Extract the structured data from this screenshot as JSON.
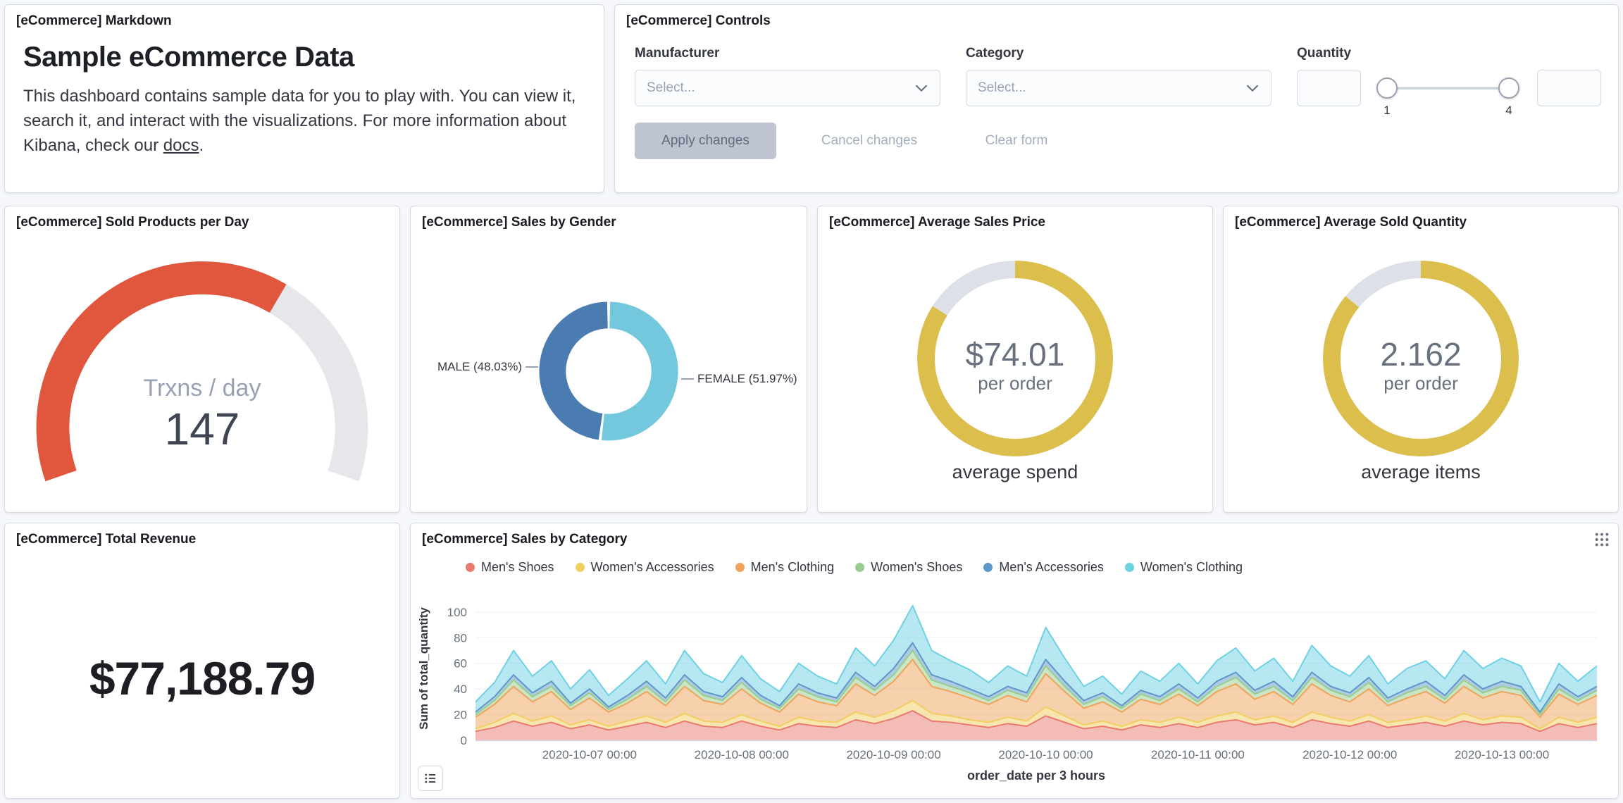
{
  "page": {
    "background": "#F5F7FA",
    "panel_border": "#D3DAE6"
  },
  "panels": {
    "markdown": {
      "title": "[eCommerce] Markdown",
      "heading": "Sample eCommerce Data",
      "body_before_link": "This dashboard contains sample data for you to play with. You can view it, search it, and interact with the visualizations. For more information about Kibana, check our ",
      "link_text": "docs",
      "body_after_link": "."
    },
    "controls": {
      "title": "[eCommerce] Controls",
      "manufacturer_label": "Manufacturer",
      "category_label": "Category",
      "quantity_label": "Quantity",
      "select_placeholder": "Select...",
      "quantity_min_label": "1",
      "quantity_max_label": "4",
      "apply_label": "Apply changes",
      "cancel_label": "Cancel changes",
      "clear_label": "Clear form"
    },
    "sold_products": {
      "title": "[eCommerce] Sold Products per Day"
    },
    "sales_by_gender": {
      "title": "[eCommerce] Sales by Gender"
    },
    "average_sales_price": {
      "title": "[eCommerce] Average Sales Price"
    },
    "average_sold_quantity": {
      "title": "[eCommerce] Average Sold Quantity"
    },
    "total_revenue": {
      "title": "[eCommerce] Total Revenue"
    },
    "sales_by_category": {
      "title": "[eCommerce] Sales by Category"
    }
  },
  "chart_data": {
    "sold_products_gauge": {
      "type": "gauge",
      "label": "Trxns / day",
      "value": "147",
      "fraction": 0.64,
      "color": "#E1573E",
      "track_color": "#E5E7EB"
    },
    "sales_by_gender_pie": {
      "type": "pie",
      "left_label": "MALE (48.03%)",
      "right_label": "FEMALE (51.97%)",
      "slices": [
        {
          "name": "FEMALE",
          "pct": 51.97,
          "color": "#74C8DD"
        },
        {
          "name": "MALE",
          "pct": 48.03,
          "color": "#4A7CB2"
        }
      ]
    },
    "avg_price_goal": {
      "type": "goal",
      "value": "$74.01",
      "sub_label": "per order",
      "caption": "average spend",
      "fraction": 0.84,
      "color": "#DCBE4C",
      "track_color": "#DDE0E6"
    },
    "avg_quantity_goal": {
      "type": "goal",
      "value": "2.162",
      "sub_label": "per order",
      "caption": "average items",
      "fraction": 0.86,
      "color": "#DCBE4C",
      "track_color": "#DDE0E6"
    },
    "total_revenue_metric": {
      "type": "metric",
      "value": "$77,188.79"
    },
    "sales_by_category_area": {
      "type": "area",
      "stacked": true,
      "ylabel": "Sum of total_quantity",
      "xlabel": "order_date per 3 hours",
      "y_ticks": [
        0,
        20,
        40,
        60,
        80,
        100
      ],
      "ymax": 112,
      "x_start": "2020-10-06 06:00",
      "x_interval": "3h",
      "point_count": 60,
      "x_tick_labels": [
        "2020-10-07 00:00",
        "2020-10-08 00:00",
        "2020-10-09 00:00",
        "2020-10-10 00:00",
        "2020-10-11 00:00",
        "2020-10-12 00:00",
        "2020-10-13 00:00"
      ],
      "x_tick_indices": [
        6,
        14,
        22,
        30,
        38,
        46,
        54
      ],
      "series": [
        {
          "name": "Men's Shoes",
          "color": "#EA7A70",
          "values": [
            7,
            10,
            15,
            11,
            14,
            9,
            12,
            8,
            11,
            14,
            10,
            15,
            11,
            10,
            15,
            11,
            8,
            13,
            11,
            10,
            16,
            13,
            17,
            23,
            15,
            14,
            12,
            10,
            13,
            11,
            19,
            14,
            9,
            11,
            8,
            12,
            10,
            13,
            10,
            14,
            16,
            12,
            14,
            10,
            16,
            13,
            11,
            15,
            10,
            12,
            14,
            11,
            15,
            12,
            14,
            13,
            7,
            13,
            10,
            13
          ]
        },
        {
          "name": "Women's Accessories",
          "color": "#F2CE61",
          "values": [
            2,
            4,
            6,
            4,
            5,
            3,
            4,
            3,
            4,
            5,
            4,
            6,
            4,
            4,
            5,
            4,
            3,
            5,
            4,
            4,
            6,
            5,
            6,
            8,
            6,
            5,
            4,
            4,
            5,
            4,
            7,
            5,
            3,
            4,
            3,
            4,
            4,
            5,
            4,
            5,
            6,
            4,
            5,
            4,
            6,
            5,
            4,
            5,
            4,
            4,
            5,
            4,
            6,
            4,
            5,
            5,
            2,
            5,
            4,
            5
          ]
        },
        {
          "name": "Men's Clothing",
          "color": "#F0A35A",
          "values": [
            9,
            14,
            21,
            15,
            19,
            12,
            17,
            11,
            14,
            19,
            13,
            21,
            16,
            14,
            20,
            14,
            11,
            18,
            15,
            13,
            22,
            17,
            23,
            32,
            21,
            19,
            17,
            14,
            17,
            15,
            26,
            19,
            13,
            15,
            11,
            16,
            14,
            18,
            13,
            19,
            22,
            16,
            19,
            14,
            22,
            17,
            15,
            20,
            13,
            17,
            19,
            14,
            21,
            17,
            19,
            17,
            9,
            18,
            14,
            17
          ]
        },
        {
          "name": "Women's Shoes",
          "color": "#97CE8D",
          "values": [
            2,
            3,
            5,
            4,
            4,
            3,
            4,
            2,
            3,
            4,
            3,
            5,
            4,
            3,
            5,
            3,
            3,
            4,
            4,
            3,
            5,
            4,
            5,
            7,
            5,
            4,
            4,
            3,
            4,
            4,
            6,
            4,
            3,
            4,
            3,
            4,
            3,
            4,
            3,
            4,
            5,
            4,
            4,
            3,
            5,
            4,
            4,
            5,
            3,
            4,
            4,
            3,
            5,
            4,
            4,
            4,
            2,
            4,
            3,
            4
          ]
        },
        {
          "name": "Men's Accessories",
          "color": "#5E97C9",
          "values": [
            2,
            3,
            4,
            3,
            4,
            2,
            3,
            2,
            3,
            4,
            3,
            4,
            3,
            3,
            4,
            3,
            2,
            4,
            3,
            3,
            4,
            3,
            5,
            6,
            4,
            4,
            3,
            3,
            3,
            3,
            5,
            4,
            3,
            3,
            2,
            3,
            3,
            4,
            3,
            4,
            4,
            3,
            4,
            3,
            4,
            3,
            3,
            4,
            3,
            3,
            4,
            3,
            4,
            3,
            4,
            3,
            2,
            4,
            3,
            3
          ]
        },
        {
          "name": "Women's Clothing",
          "color": "#6FD1E4",
          "values": [
            8,
            11,
            19,
            13,
            16,
            11,
            15,
            9,
            13,
            16,
            11,
            19,
            14,
            11,
            17,
            13,
            11,
            16,
            13,
            11,
            19,
            16,
            22,
            29,
            19,
            16,
            15,
            11,
            16,
            13,
            25,
            18,
            11,
            13,
            9,
            15,
            12,
            16,
            11,
            16,
            19,
            15,
            18,
            12,
            21,
            16,
            13,
            17,
            11,
            16,
            16,
            13,
            19,
            16,
            18,
            16,
            8,
            16,
            12,
            16
          ]
        }
      ]
    }
  }
}
